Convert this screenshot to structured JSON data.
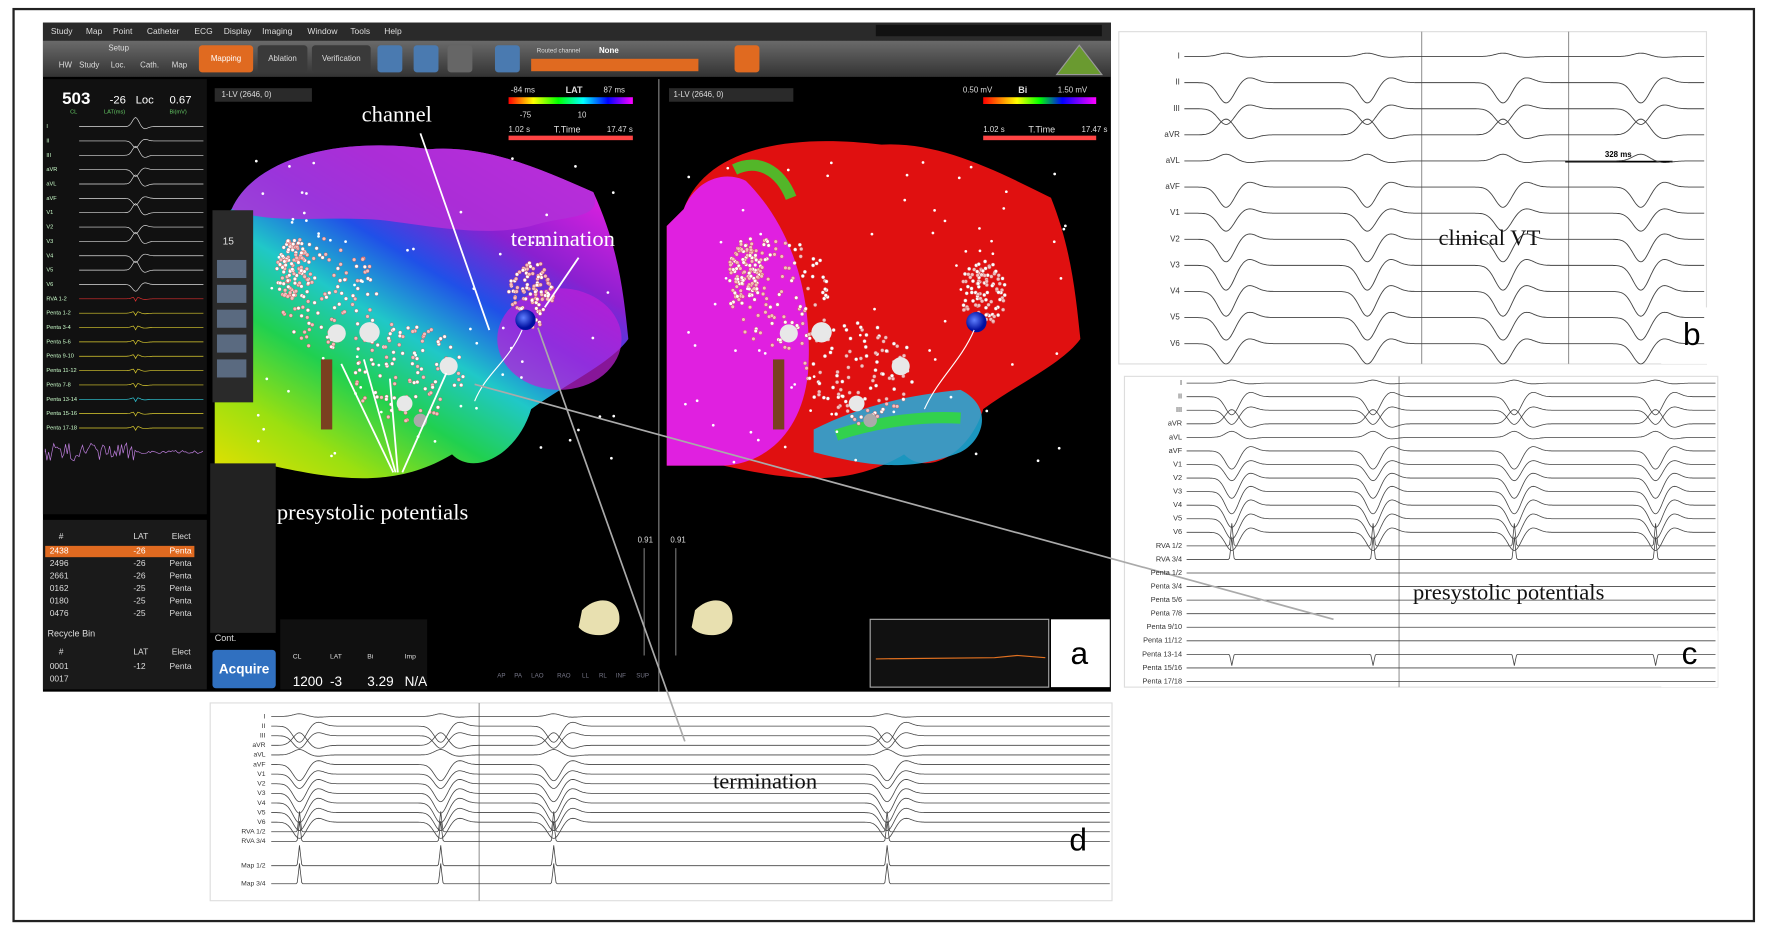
{
  "menu": [
    "Study",
    "Map",
    "Point",
    "Catheter",
    "ECG",
    "Display",
    "Imaging",
    "Window",
    "Tools",
    "Help"
  ],
  "toolbar": {
    "setup": "Setup",
    "tabs": [
      "HW",
      "Study",
      "Loc.",
      "Cath.",
      "Map"
    ],
    "mapping": "Mapping",
    "ablation": "Ablation",
    "verification": "Verification",
    "routed_channel": "Routed channel",
    "routed_value": "None"
  },
  "status": {
    "cl_value": "503",
    "lat_value": "-26",
    "loc": "Loc",
    "bi_value": "0.67",
    "cl_label": "CL",
    "lat_label": "LAT(ms)",
    "bi_label": "Bi(mV)"
  },
  "left_leads": [
    "I",
    "II",
    "III",
    "aVR",
    "aVL",
    "aVF",
    "V1",
    "V2",
    "V3",
    "V4",
    "V5",
    "V6",
    "RVA 1-2",
    "Penta 1-2",
    "Penta 3-4",
    "Penta 5-6",
    "Penta 9-10",
    "Penta 11-12",
    "Penta 7-8",
    "Penta 13-14",
    "Penta 15-16",
    "Penta 17-18"
  ],
  "points_table": {
    "headers": [
      "#",
      "LAT",
      "Elect"
    ],
    "rows": [
      [
        "2438",
        "-26",
        "Penta"
      ],
      [
        "2496",
        "-26",
        "Penta"
      ],
      [
        "2661",
        "-26",
        "Penta"
      ],
      [
        "0162",
        "-25",
        "Penta"
      ],
      [
        "0180",
        "-25",
        "Penta"
      ],
      [
        "0476",
        "-25",
        "Penta"
      ]
    ]
  },
  "recycle_bin": {
    "title": "Recycle Bin",
    "headers": [
      "#",
      "LAT",
      "Elect"
    ],
    "rows": [
      [
        "0001",
        "-12",
        "Penta"
      ],
      [
        "0017"
      ]
    ]
  },
  "maps": [
    {
      "selector": "1-LV (2646, 0)",
      "scale_min": "-84 ms",
      "scale_label": "LAT",
      "scale_max": "87 ms",
      "markers": [
        "-75",
        "10"
      ],
      "time_min": "1.02 s",
      "time_label": "T.Time",
      "time_max": "17.47 s",
      "zoom": "0.91"
    },
    {
      "selector": "1-LV (2646, 0)",
      "scale_min": "0.50 mV",
      "scale_label": "Bi",
      "scale_max": "1.50 mV",
      "time_min": "1.02 s",
      "time_label": "T.Time",
      "time_max": "17.47 s",
      "zoom": "0.91"
    }
  ],
  "tool_palette": {
    "value": "15"
  },
  "acquire": {
    "cont": "Cont.",
    "button": "Acquire",
    "headers": [
      "CL",
      "LAT",
      "Bi",
      "Imp"
    ],
    "values": [
      "1200",
      "-3",
      "3.29",
      "N/A"
    ]
  },
  "views": [
    "AP",
    "PA",
    "LAO",
    "RAO",
    "LL",
    "RL",
    "INF",
    "SUP"
  ],
  "annotations": {
    "channel": "channel",
    "termination_map": "termination",
    "presystolic_map": "presystolic potentials",
    "clinical_vt": "clinical VT",
    "presystolic_c": "presystolic potentials",
    "termination_d": "termination"
  },
  "panels": {
    "a": "a",
    "b": "b",
    "c": "c",
    "d": "d"
  },
  "panel_b": {
    "leads": [
      "I",
      "II",
      "III",
      "aVR",
      "aVL",
      "aVF",
      "V1",
      "V2",
      "V3",
      "V4",
      "V5",
      "V6"
    ],
    "interval": "328 ms"
  },
  "panel_c": {
    "leads": [
      "I",
      "II",
      "III",
      "aVR",
      "aVL",
      "aVF",
      "V1",
      "V2",
      "V3",
      "V4",
      "V5",
      "V6",
      "RVA 1/2",
      "RVA 3/4",
      "Penta 1/2",
      "Penta 3/4",
      "Penta 5/6",
      "Penta 7/8",
      "Penta 9/10",
      "Penta 11/12",
      "Penta 13-14",
      "Penta 15/16",
      "Penta 17/18"
    ]
  },
  "panel_d": {
    "leads": [
      "I",
      "II",
      "III",
      "aVR",
      "aVL",
      "aVF",
      "V1",
      "V2",
      "V3",
      "V4",
      "V5",
      "V6",
      "RVA 1/2",
      "RVA 3/4",
      "Map 1/2",
      "Map 3/4"
    ]
  }
}
